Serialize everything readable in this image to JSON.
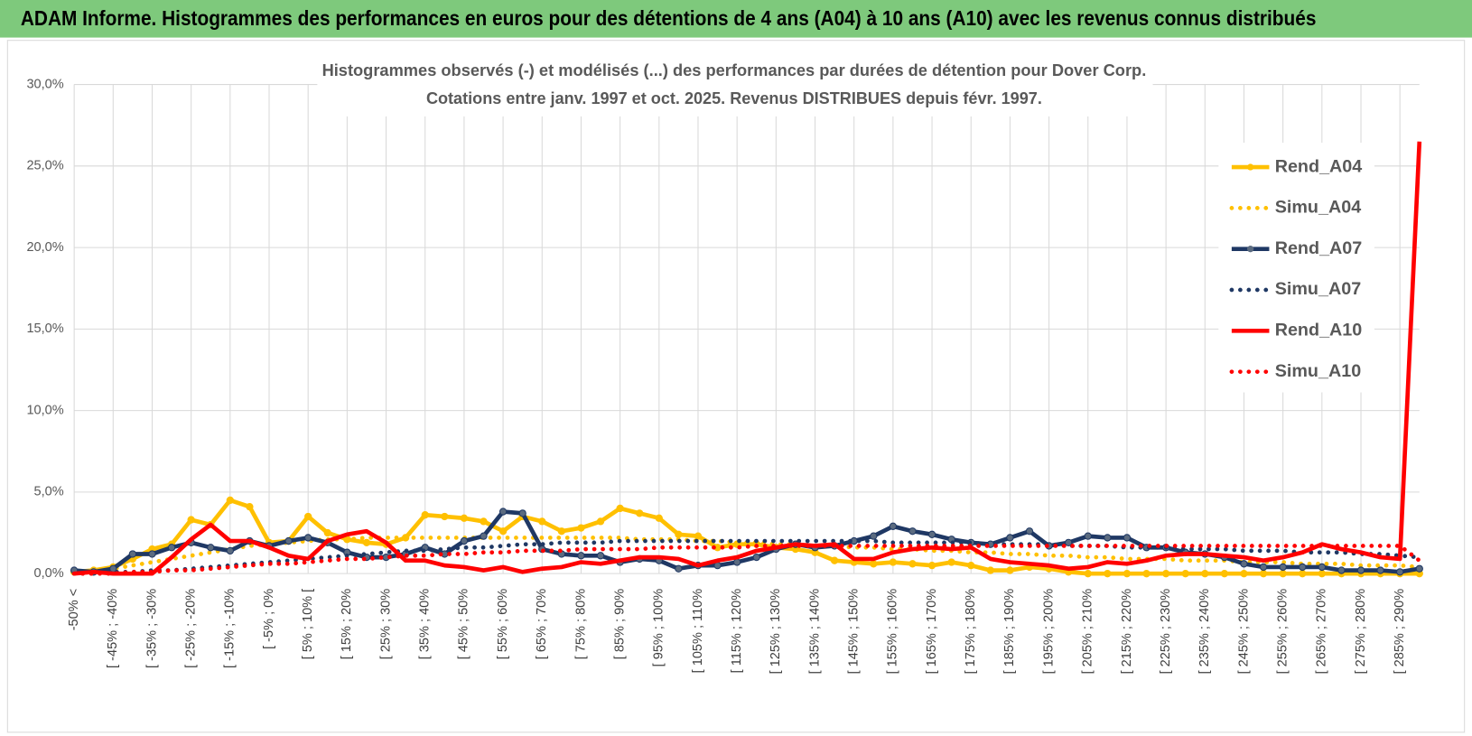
{
  "banner": "ADAM Informe. Histogrammes des performances en euros pour des détentions de 4 ans (A04) à 10 ans (A10) avec les revenus connus distribués",
  "chart_data": {
    "type": "line",
    "title": "Histogrammes observés (-) et modélisés (...) des performances par durées de détention pour Dover Corp.",
    "subtitle": "Cotations entre janv. 1997 et oct. 2025.  Revenus DISTRIBUES depuis févr. 1997.",
    "categories": [
      "-50% <",
      null,
      "[ -45% ; -40%",
      null,
      "[ -35% ; -30%",
      null,
      "[ -25% ; -20%",
      null,
      "[ -15% ; -10%",
      null,
      "[ -5% ; 0%",
      null,
      "[ 5% ; 10% [",
      null,
      "[ 15% ; 20%",
      null,
      "[ 25% ; 30%",
      null,
      "[ 35% ; 40%",
      null,
      "[ 45% ; 50%",
      null,
      "[ 55% ; 60%",
      null,
      "[ 65% ; 70%",
      null,
      "[ 75% ; 80%",
      null,
      "[ 85% ; 90%",
      null,
      "[ 95% ; 100%",
      null,
      "[ 105% ; 110%",
      null,
      "[ 115% ; 120%",
      null,
      "[ 125% ; 130%",
      null,
      "[ 135% ; 140%",
      null,
      "[ 145% ; 150%",
      null,
      "[ 155% ; 160%",
      null,
      "[ 165% ; 170%",
      null,
      "[ 175% ; 180%",
      null,
      "[ 185% ; 190%",
      null,
      "[ 195% ; 200%",
      null,
      "[ 205% ; 210%",
      null,
      "[ 215% ; 220%",
      null,
      "[ 225% ; 230%",
      null,
      "[ 235% ; 240%",
      null,
      "[ 245% ; 250%",
      null,
      "[ 255% ; 260%",
      null,
      "[ 265% ; 270%",
      null,
      "[ 275% ; 280%",
      null,
      "[ 285% ; 290%",
      null
    ],
    "ylim": [
      0,
      30
    ],
    "yticks": [
      {
        "value": 0,
        "label": "0,0%"
      },
      {
        "value": 5,
        "label": "5,0%"
      },
      {
        "value": 10,
        "label": "10,0%"
      },
      {
        "value": 15,
        "label": "15,0%"
      },
      {
        "value": 20,
        "label": "20,0%"
      },
      {
        "value": 25,
        "label": "25,0%"
      },
      {
        "value": 30,
        "label": "30,0%"
      }
    ],
    "grid": true,
    "legend": "right",
    "series": [
      {
        "name": "Rend_A04",
        "color": "#ffc000",
        "style": "solid",
        "marker": true,
        "values": [
          0.1,
          0.2,
          0.4,
          0.9,
          1.5,
          1.8,
          3.3,
          3.0,
          4.5,
          4.1,
          1.9,
          2.0,
          3.5,
          2.5,
          2.1,
          1.9,
          1.8,
          2.2,
          3.6,
          3.5,
          3.4,
          3.2,
          2.6,
          3.5,
          3.2,
          2.6,
          2.8,
          3.2,
          4.0,
          3.7,
          3.4,
          2.4,
          2.3,
          1.6,
          1.8,
          1.8,
          1.6,
          1.5,
          1.3,
          0.8,
          0.7,
          0.6,
          0.7,
          0.6,
          0.5,
          0.7,
          0.5,
          0.2,
          0.2,
          0.4,
          0.3,
          0.1,
          0,
          0,
          0,
          0,
          0,
          0,
          0,
          0,
          0,
          0,
          0,
          0,
          0,
          0,
          0,
          0,
          0,
          0
        ]
      },
      {
        "name": "Simu_A04",
        "color": "#ffc000",
        "style": "dotted",
        "marker": false,
        "values": [
          0.1,
          0.2,
          0.3,
          0.5,
          0.7,
          0.9,
          1.1,
          1.3,
          1.5,
          1.7,
          1.8,
          1.9,
          2.0,
          2.1,
          2.1,
          2.2,
          2.2,
          2.2,
          2.2,
          2.2,
          2.2,
          2.2,
          2.2,
          2.2,
          2.2,
          2.2,
          2.2,
          2.2,
          2.2,
          2.1,
          2.1,
          2.1,
          2.0,
          2.0,
          1.9,
          1.9,
          1.8,
          1.8,
          1.7,
          1.7,
          1.6,
          1.6,
          1.5,
          1.5,
          1.4,
          1.4,
          1.3,
          1.3,
          1.2,
          1.2,
          1.1,
          1.1,
          1.0,
          1.0,
          0.9,
          0.9,
          0.9,
          0.8,
          0.8,
          0.8,
          0.7,
          0.7,
          0.7,
          0.6,
          0.6,
          0.6,
          0.5,
          0.5,
          0.5,
          0.4
        ]
      },
      {
        "name": "Rend_A07",
        "color": "#1f3864",
        "style": "solid",
        "marker": true,
        "values": [
          0.2,
          0.1,
          0.3,
          1.2,
          1.2,
          1.6,
          1.9,
          1.6,
          1.4,
          2.0,
          1.7,
          2.0,
          2.2,
          1.9,
          1.3,
          1.0,
          1.0,
          1.2,
          1.6,
          1.2,
          2.0,
          2.3,
          3.8,
          3.7,
          1.5,
          1.2,
          1.1,
          1.1,
          0.7,
          0.9,
          0.8,
          0.3,
          0.5,
          0.5,
          0.7,
          1.0,
          1.5,
          1.8,
          1.6,
          1.7,
          2.0,
          2.3,
          2.9,
          2.6,
          2.4,
          2.1,
          1.9,
          1.8,
          2.2,
          2.6,
          1.7,
          1.9,
          2.3,
          2.2,
          2.2,
          1.6,
          1.6,
          1.3,
          1.2,
          1.0,
          0.6,
          0.4,
          0.4,
          0.4,
          0.4,
          0.2,
          0.2,
          0.2,
          0.1,
          0.3
        ]
      },
      {
        "name": "Simu_A07",
        "color": "#1f3864",
        "style": "dotted",
        "marker": false,
        "values": [
          0,
          0,
          0.1,
          0.1,
          0.2,
          0.2,
          0.3,
          0.4,
          0.5,
          0.6,
          0.7,
          0.8,
          0.9,
          1.0,
          1.1,
          1.2,
          1.3,
          1.4,
          1.4,
          1.5,
          1.6,
          1.6,
          1.7,
          1.8,
          1.8,
          1.9,
          1.9,
          1.9,
          2.0,
          2.0,
          2.0,
          2.0,
          2.0,
          2.0,
          2.0,
          2.0,
          2.0,
          2.0,
          2.0,
          2.0,
          2.0,
          2.0,
          1.9,
          1.9,
          1.9,
          1.9,
          1.9,
          1.8,
          1.8,
          1.8,
          1.8,
          1.7,
          1.7,
          1.7,
          1.6,
          1.6,
          1.6,
          1.5,
          1.5,
          1.5,
          1.4,
          1.4,
          1.4,
          1.3,
          1.3,
          1.3,
          1.2,
          1.2,
          1.1,
          1.0
        ]
      },
      {
        "name": "Rend_A10",
        "color": "#ff0000",
        "style": "solid",
        "marker": false,
        "values": [
          0,
          0.1,
          0,
          0,
          0,
          1.0,
          2.1,
          3.0,
          2.0,
          2.0,
          1.6,
          1.1,
          0.9,
          2.0,
          2.4,
          2.6,
          1.9,
          0.8,
          0.8,
          0.5,
          0.4,
          0.2,
          0.4,
          0.1,
          0.3,
          0.4,
          0.7,
          0.6,
          0.8,
          1.0,
          1.0,
          0.9,
          0.5,
          0.8,
          1.0,
          1.4,
          1.6,
          1.8,
          1.7,
          1.8,
          0.9,
          0.9,
          1.3,
          1.5,
          1.6,
          1.5,
          1.6,
          0.9,
          0.7,
          0.6,
          0.5,
          0.3,
          0.4,
          0.7,
          0.6,
          0.8,
          1.1,
          1.2,
          1.2,
          1.1,
          1.0,
          0.8,
          1.0,
          1.3,
          1.8,
          1.5,
          1.3,
          1.0,
          0.9,
          26.5
        ]
      },
      {
        "name": "Simu_A10",
        "color": "#ff0000",
        "style": "dotted",
        "marker": false,
        "values": [
          0,
          0,
          0,
          0.1,
          0.1,
          0.2,
          0.2,
          0.3,
          0.4,
          0.5,
          0.6,
          0.6,
          0.7,
          0.8,
          0.9,
          0.9,
          1.0,
          1.1,
          1.1,
          1.2,
          1.2,
          1.3,
          1.3,
          1.4,
          1.4,
          1.4,
          1.5,
          1.5,
          1.5,
          1.5,
          1.6,
          1.6,
          1.6,
          1.6,
          1.6,
          1.7,
          1.7,
          1.7,
          1.7,
          1.7,
          1.7,
          1.7,
          1.7,
          1.7,
          1.7,
          1.7,
          1.7,
          1.7,
          1.7,
          1.7,
          1.7,
          1.7,
          1.7,
          1.7,
          1.7,
          1.7,
          1.7,
          1.7,
          1.7,
          1.7,
          1.7,
          1.7,
          1.7,
          1.7,
          1.7,
          1.7,
          1.7,
          1.7,
          1.7,
          0.8
        ]
      }
    ]
  }
}
